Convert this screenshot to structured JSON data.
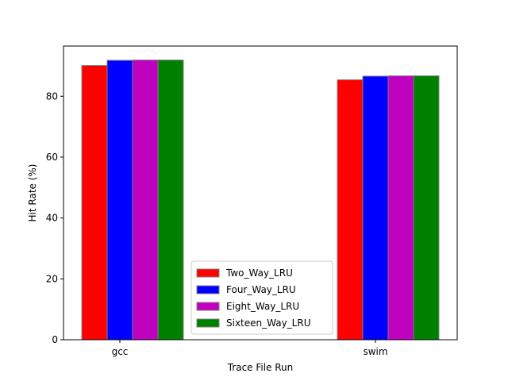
{
  "chart_data": {
    "type": "bar",
    "title": "",
    "xlabel": "Trace File Run",
    "ylabel": "Hit Rate (%)",
    "categories": [
      "gcc",
      "swim"
    ],
    "ylim": [
      0,
      96.5
    ],
    "yticks": [
      0,
      20,
      40,
      60,
      80
    ],
    "grid": false,
    "legend_position": "lower center",
    "series": [
      {
        "name": "Two_Way_LRU",
        "color": "#ff0000",
        "values": [
          90.1,
          85.4
        ]
      },
      {
        "name": "Four_Way_LRU",
        "color": "#0000ff",
        "values": [
          91.8,
          86.6
        ]
      },
      {
        "name": "Eight_Way_LRU",
        "color": "#bf00bf",
        "values": [
          91.9,
          86.7
        ]
      },
      {
        "name": "Sixteen_Way_LRU",
        "color": "#008000",
        "values": [
          91.9,
          86.7
        ]
      }
    ],
    "bar_edge_color": "#808080"
  }
}
